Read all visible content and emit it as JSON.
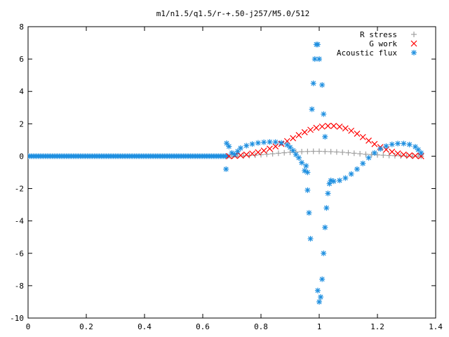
{
  "chart_data": {
    "type": "scatter",
    "title": "m1/n1.5/q1.5/r-+.50-j257/M5.0/512",
    "xlabel": "",
    "ylabel": "",
    "xlim": [
      0,
      1.4
    ],
    "ylim": [
      -10,
      8
    ],
    "x_ticks": [
      "0",
      "0.2",
      "0.4",
      "0.6",
      "0.8",
      "1",
      "1.2",
      "1.4"
    ],
    "y_ticks": [
      "8",
      "6",
      "4",
      "2",
      "0",
      "-2",
      "-4",
      "-6",
      "-8",
      "-10"
    ],
    "grid": false,
    "legend_position": "top-right",
    "series": [
      {
        "name": "R stress",
        "marker": "plus",
        "color": "#a0a0a0",
        "points": [
          [
            0.7,
            0.0
          ],
          [
            0.72,
            0.01
          ],
          [
            0.74,
            0.02
          ],
          [
            0.76,
            0.04
          ],
          [
            0.78,
            0.06
          ],
          [
            0.8,
            0.09
          ],
          [
            0.82,
            0.12
          ],
          [
            0.84,
            0.15
          ],
          [
            0.86,
            0.18
          ],
          [
            0.88,
            0.21
          ],
          [
            0.9,
            0.24
          ],
          [
            0.92,
            0.26
          ],
          [
            0.94,
            0.28
          ],
          [
            0.96,
            0.29
          ],
          [
            0.98,
            0.3
          ],
          [
            1.0,
            0.3
          ],
          [
            1.02,
            0.29
          ],
          [
            1.04,
            0.28
          ],
          [
            1.06,
            0.26
          ],
          [
            1.08,
            0.24
          ],
          [
            1.1,
            0.21
          ],
          [
            1.12,
            0.18
          ],
          [
            1.14,
            0.15
          ],
          [
            1.16,
            0.12
          ],
          [
            1.18,
            0.1
          ],
          [
            1.2,
            0.08
          ],
          [
            1.22,
            0.06
          ],
          [
            1.24,
            0.04
          ],
          [
            1.26,
            0.03
          ],
          [
            1.28,
            0.02
          ],
          [
            1.3,
            0.01
          ],
          [
            1.32,
            0.0
          ],
          [
            1.34,
            0.0
          ],
          [
            1.35,
            0.0
          ]
        ]
      },
      {
        "name": "G work",
        "marker": "cross",
        "color": "#ff0000",
        "points": [
          [
            0.69,
            0.0
          ],
          [
            0.71,
            0.02
          ],
          [
            0.73,
            0.05
          ],
          [
            0.75,
            0.1
          ],
          [
            0.77,
            0.16
          ],
          [
            0.79,
            0.24
          ],
          [
            0.81,
            0.34
          ],
          [
            0.83,
            0.46
          ],
          [
            0.85,
            0.6
          ],
          [
            0.87,
            0.76
          ],
          [
            0.89,
            0.93
          ],
          [
            0.91,
            1.11
          ],
          [
            0.93,
            1.3
          ],
          [
            0.95,
            1.48
          ],
          [
            0.97,
            1.63
          ],
          [
            0.99,
            1.75
          ],
          [
            1.01,
            1.83
          ],
          [
            1.03,
            1.87
          ],
          [
            1.05,
            1.87
          ],
          [
            1.07,
            1.82
          ],
          [
            1.09,
            1.72
          ],
          [
            1.11,
            1.57
          ],
          [
            1.13,
            1.39
          ],
          [
            1.15,
            1.18
          ],
          [
            1.17,
            0.96
          ],
          [
            1.19,
            0.75
          ],
          [
            1.21,
            0.56
          ],
          [
            1.23,
            0.4
          ],
          [
            1.25,
            0.27
          ],
          [
            1.27,
            0.17
          ],
          [
            1.29,
            0.1
          ],
          [
            1.31,
            0.05
          ],
          [
            1.33,
            0.02
          ],
          [
            1.35,
            0.0
          ]
        ]
      },
      {
        "name": "Acoustic flux",
        "marker": "star",
        "color": "#1e8fe0",
        "points": [
          [
            0.68,
            -0.8
          ],
          [
            0.682,
            0.8
          ],
          [
            0.69,
            0.6
          ],
          [
            0.7,
            0.2
          ],
          [
            0.71,
            0.1
          ],
          [
            0.72,
            0.3
          ],
          [
            0.73,
            0.5
          ],
          [
            0.75,
            0.65
          ],
          [
            0.77,
            0.75
          ],
          [
            0.79,
            0.82
          ],
          [
            0.81,
            0.86
          ],
          [
            0.83,
            0.88
          ],
          [
            0.85,
            0.87
          ],
          [
            0.87,
            0.82
          ],
          [
            0.89,
            0.7
          ],
          [
            0.9,
            0.55
          ],
          [
            0.91,
            0.35
          ],
          [
            0.92,
            0.1
          ],
          [
            0.93,
            -0.1
          ],
          [
            0.94,
            -0.4
          ],
          [
            0.95,
            -0.9
          ],
          [
            0.96,
            -2.1
          ],
          [
            0.965,
            -3.5
          ],
          [
            0.97,
            -5.1
          ],
          [
            0.975,
            2.9
          ],
          [
            0.98,
            4.5
          ],
          [
            0.985,
            6.0
          ],
          [
            0.99,
            6.9
          ],
          [
            0.995,
            -8.3
          ],
          [
            1.0,
            -9.0
          ],
          [
            1.005,
            -8.7
          ],
          [
            1.01,
            -7.6
          ],
          [
            1.015,
            -6.0
          ],
          [
            1.02,
            -4.4
          ],
          [
            1.025,
            -3.2
          ],
          [
            1.03,
            -2.3
          ],
          [
            1.035,
            -1.7
          ],
          [
            1.04,
            -1.5
          ],
          [
            1.05,
            -1.55
          ],
          [
            1.07,
            -1.5
          ],
          [
            1.09,
            -1.35
          ],
          [
            1.11,
            -1.1
          ],
          [
            1.13,
            -0.8
          ],
          [
            1.15,
            -0.45
          ],
          [
            1.17,
            -0.1
          ],
          [
            1.19,
            0.2
          ],
          [
            1.21,
            0.45
          ],
          [
            1.23,
            0.62
          ],
          [
            1.25,
            0.73
          ],
          [
            1.27,
            0.78
          ],
          [
            1.29,
            0.78
          ],
          [
            1.31,
            0.72
          ],
          [
            1.33,
            0.58
          ],
          [
            1.34,
            0.4
          ],
          [
            1.35,
            0.2
          ],
          [
            1.01,
            4.4
          ],
          [
            1.015,
            2.6
          ],
          [
            1.02,
            1.2
          ],
          [
            1.0,
            6.0
          ],
          [
            0.995,
            6.9
          ],
          [
            0.96,
            -1.0
          ],
          [
            0.955,
            -0.6
          ]
        ]
      }
    ]
  }
}
